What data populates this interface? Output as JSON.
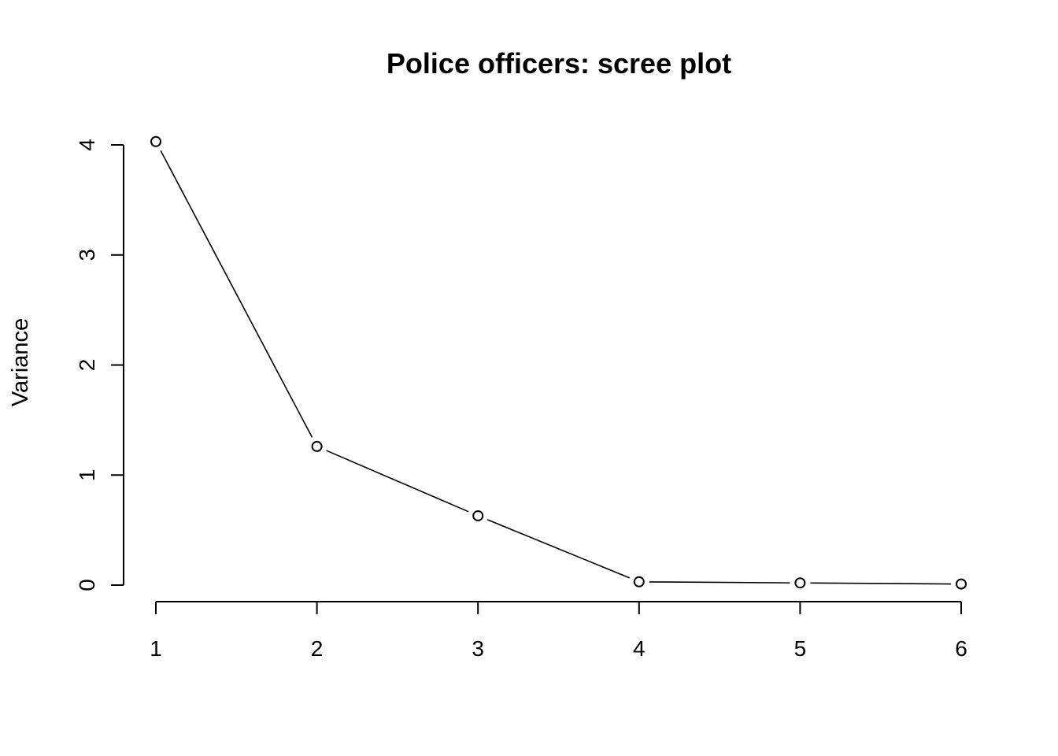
{
  "chart_data": {
    "type": "line",
    "title": "Police officers: scree plot",
    "xlabel": "",
    "ylabel": "Variance",
    "x": [
      1,
      2,
      3,
      4,
      5,
      6
    ],
    "values": [
      4.03,
      1.26,
      0.63,
      0.03,
      0.02,
      0.01
    ],
    "xlim": [
      1,
      6
    ],
    "ylim": [
      0,
      4
    ],
    "x_ticks": [
      "1",
      "2",
      "3",
      "4",
      "5",
      "6"
    ],
    "y_ticks": [
      "0",
      "1",
      "2",
      "3",
      "4"
    ],
    "marker": "open-circle",
    "grid": false,
    "legend": false,
    "colors": {
      "line": "#000000",
      "marker": "#000000",
      "background": "#ffffff"
    }
  }
}
